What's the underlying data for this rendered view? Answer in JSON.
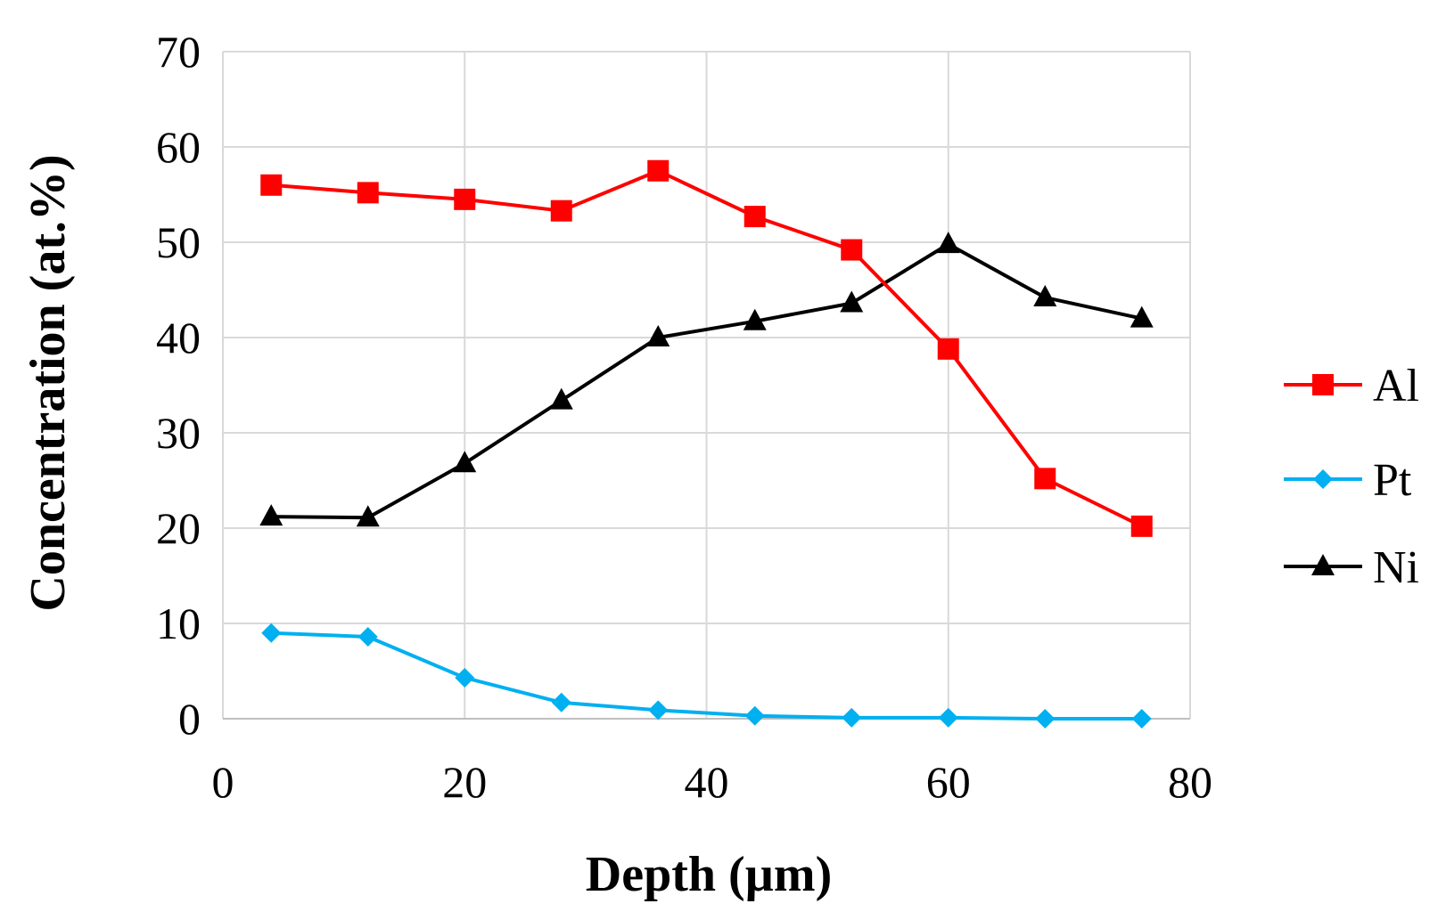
{
  "chart_data": {
    "type": "line",
    "title": "",
    "xlabel": "Depth (µm)",
    "ylabel": "Concentration (at.%)",
    "xlim": [
      0,
      80
    ],
    "ylim": [
      0,
      70
    ],
    "xticks": [
      0,
      20,
      40,
      60,
      80
    ],
    "yticks": [
      0,
      10,
      20,
      30,
      40,
      50,
      60,
      70
    ],
    "grid": true,
    "legend_position": "right",
    "x": [
      4,
      12,
      20,
      28,
      36,
      44,
      52,
      60,
      68,
      76
    ],
    "series": [
      {
        "name": "Al",
        "color": "#ff0000",
        "marker": "square",
        "values": [
          56,
          55.2,
          54.5,
          53.3,
          57.5,
          52.7,
          49.2,
          38.8,
          25.2,
          20.2
        ]
      },
      {
        "name": "Pt",
        "color": "#00b0f0",
        "marker": "diamond",
        "values": [
          9,
          8.6,
          4.3,
          1.7,
          0.9,
          0.3,
          0.1,
          0.1,
          0,
          0
        ]
      },
      {
        "name": "Ni",
        "color": "#000000",
        "marker": "triangle",
        "values": [
          21.2,
          21.1,
          26.8,
          33.4,
          40,
          41.7,
          43.6,
          49.8,
          44.2,
          42
        ]
      }
    ]
  }
}
